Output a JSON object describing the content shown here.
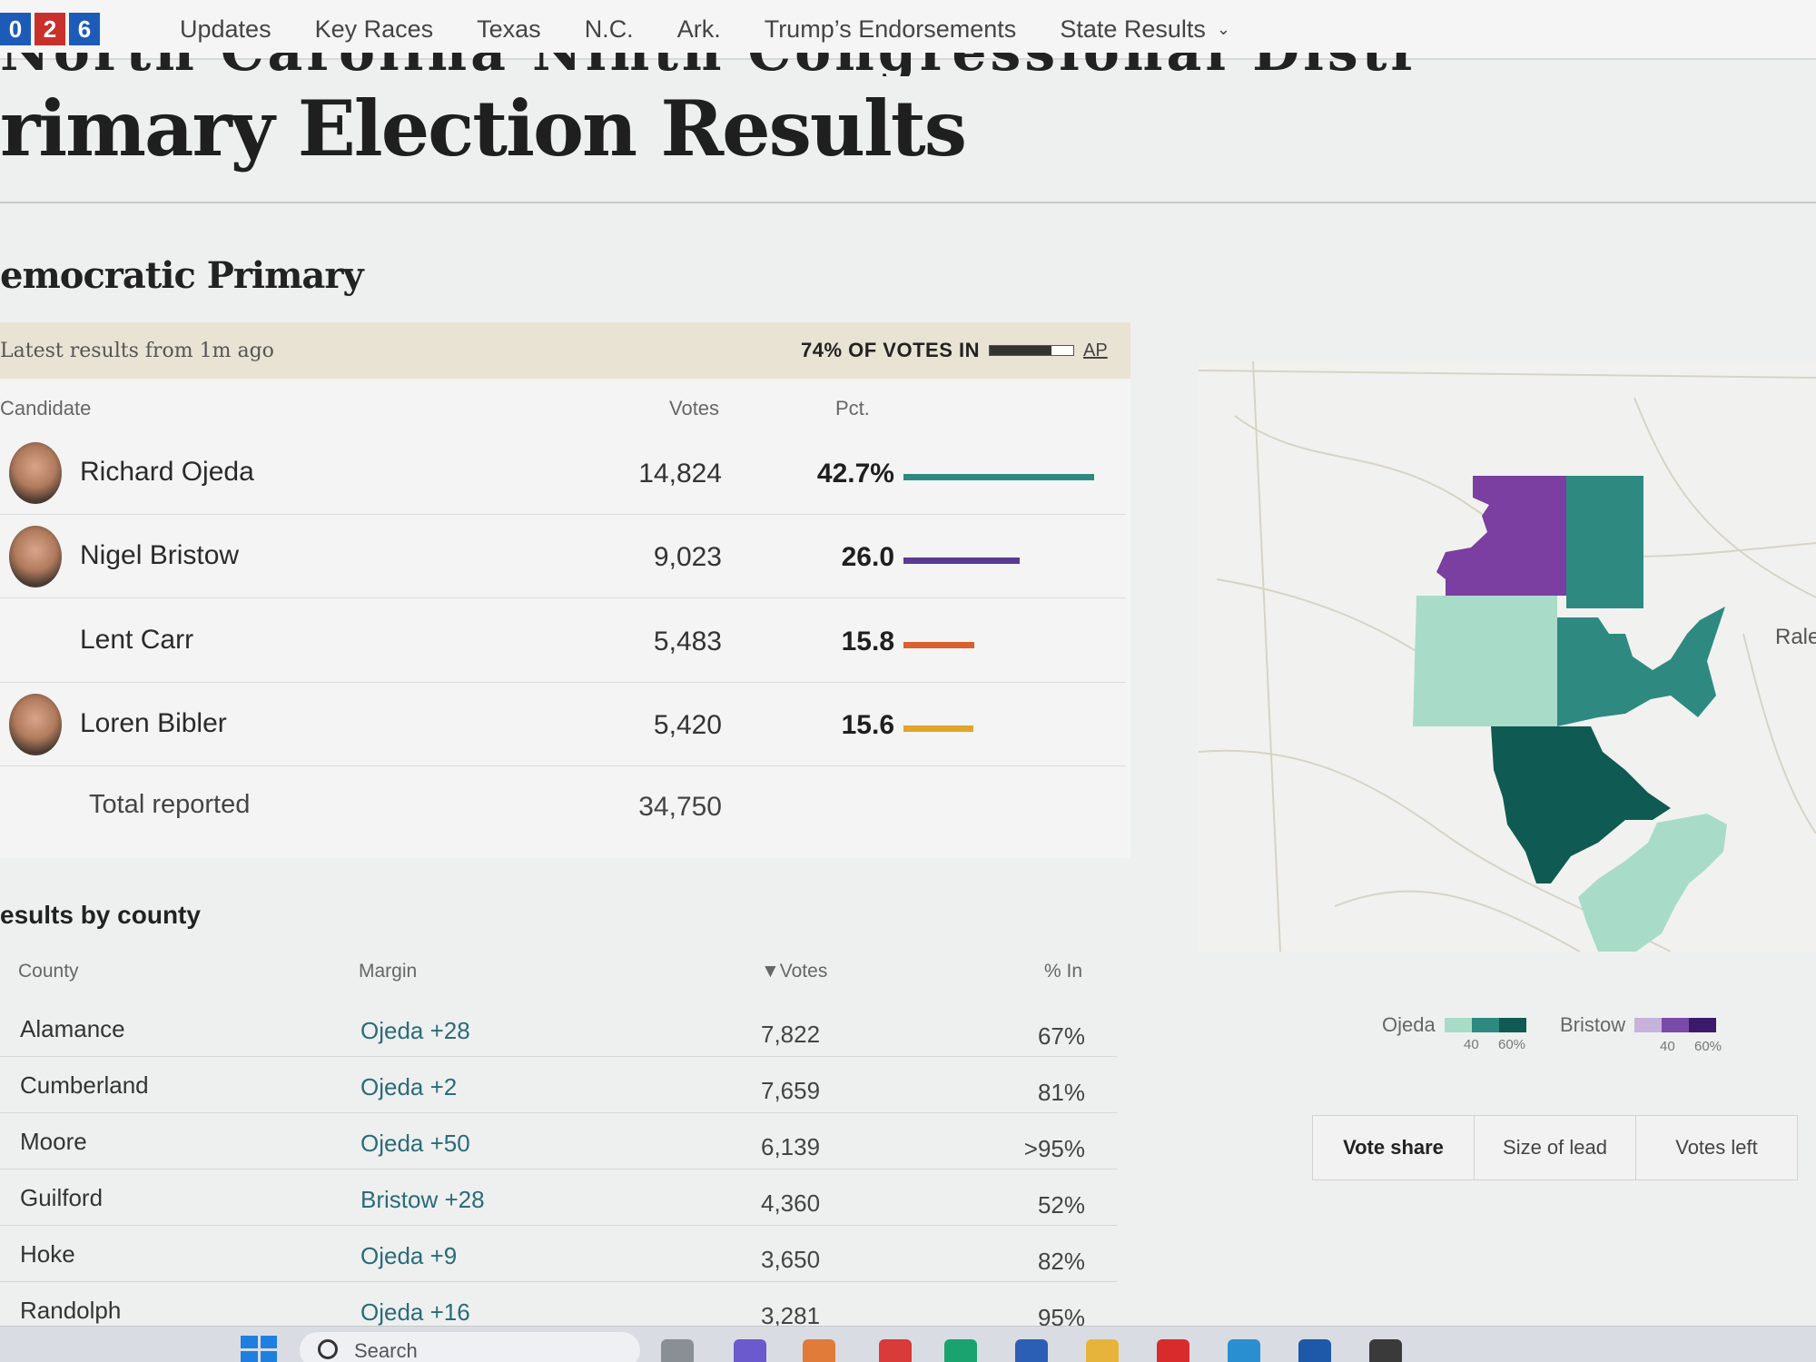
{
  "nav": {
    "logo_digits": [
      "0",
      "2",
      "6"
    ],
    "items": [
      "Updates",
      "Key Races",
      "Texas",
      "N.C.",
      "Ark.",
      "Trump’s Endorsements",
      "State Results"
    ]
  },
  "page": {
    "cut_title": "North Carolina Ninth Congressional District",
    "title": "rimary Election Results",
    "section": "emocratic Primary"
  },
  "results": {
    "updated": "Latest results from 1m ago",
    "votes_in": "74% OF VOTES IN",
    "votes_in_fraction": 0.74,
    "source": "AP",
    "headers": {
      "candidate": "Candidate",
      "votes": "Votes",
      "pct": "Pct."
    },
    "candidates": [
      {
        "name": "Richard Ojeda",
        "votes": "14,824",
        "pct": "42.7%",
        "pct_value": 42.7,
        "color": "#2e8a80",
        "has_photo": true
      },
      {
        "name": "Nigel Bristow",
        "votes": "9,023",
        "pct": "26.0",
        "pct_value": 26.0,
        "color": "#5a3a94",
        "has_photo": true
      },
      {
        "name": "Lent Carr",
        "votes": "5,483",
        "pct": "15.8",
        "pct_value": 15.8,
        "color": "#d9602f",
        "has_photo": false
      },
      {
        "name": "Loren Bibler",
        "votes": "5,420",
        "pct": "15.6",
        "pct_value": 15.6,
        "color": "#e0a52a",
        "has_photo": true
      }
    ],
    "total_label": "Total reported",
    "total_votes": "34,750"
  },
  "county": {
    "title": "esults by county",
    "headers": {
      "county": "County",
      "margin": "Margin",
      "votes": "▼Votes",
      "pct_in": "% In"
    },
    "rows": [
      {
        "name": "Alamance",
        "margin": "Ojeda +28",
        "votes": "7,822",
        "pct_in": "67%"
      },
      {
        "name": "Cumberland",
        "margin": "Ojeda +2",
        "votes": "7,659",
        "pct_in": "81%"
      },
      {
        "name": "Moore",
        "margin": "Ojeda +50",
        "votes": "6,139",
        "pct_in": ">95%"
      },
      {
        "name": "Guilford",
        "margin": "Bristow +28",
        "votes": "4,360",
        "pct_in": "52%"
      },
      {
        "name": "Hoke",
        "margin": "Ojeda +9",
        "votes": "3,650",
        "pct_in": "82%"
      },
      {
        "name": "Randolph",
        "margin": "Ojeda +16",
        "votes": "3,281",
        "pct_in": "95%"
      }
    ]
  },
  "map": {
    "city_label": "Rale",
    "legend": [
      {
        "name": "Ojeda",
        "colors": [
          "#a8dcc9",
          "#2e8a80",
          "#0f5a52"
        ],
        "ticks": [
          "40",
          "60%"
        ]
      },
      {
        "name": "Bristow",
        "colors": [
          "#c7b2dc",
          "#7a4aa8",
          "#3b1a6b"
        ],
        "ticks": [
          "40",
          "60%"
        ]
      }
    ],
    "toggle": [
      "Vote share",
      "Size of lead",
      "Votes left"
    ],
    "toggle_active": "Vote share"
  },
  "taskbar": {
    "search_placeholder": "Search"
  }
}
